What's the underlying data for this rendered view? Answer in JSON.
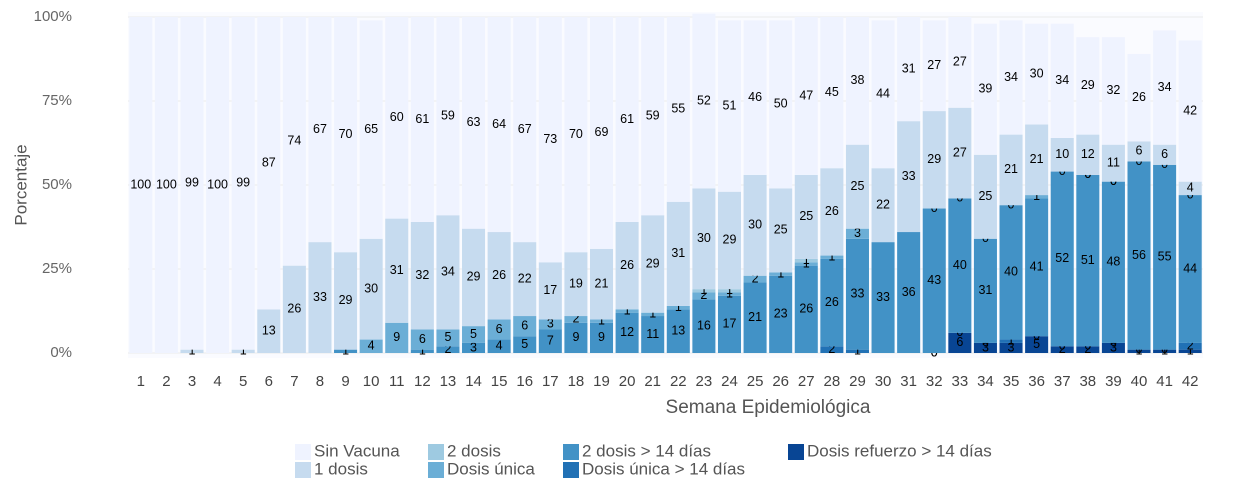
{
  "chart_data": {
    "type": "stacked-bar",
    "x_label": "Semana Epidemiológica",
    "y_label": "Porcentaje",
    "categories": [
      "1",
      "2",
      "3",
      "4",
      "5",
      "6",
      "7",
      "8",
      "9",
      "10",
      "11",
      "12",
      "13",
      "14",
      "15",
      "16",
      "17",
      "18",
      "19",
      "20",
      "21",
      "22",
      "23",
      "24",
      "25",
      "26",
      "27",
      "28",
      "29",
      "30",
      "31",
      "32",
      "33",
      "34",
      "35",
      "36",
      "37",
      "38",
      "39",
      "40",
      "41",
      "42"
    ],
    "ylim": [
      0,
      100
    ],
    "yticks": [
      {
        "value": 0,
        "label": "0%"
      },
      {
        "value": 25,
        "label": "25%"
      },
      {
        "value": 50,
        "label": "50%"
      },
      {
        "value": 75,
        "label": "75%"
      },
      {
        "value": 100,
        "label": "100%"
      }
    ],
    "grid": true,
    "legend": "bottom",
    "series": [
      {
        "name": "Sin Vacuna",
        "color": "#eff3ff",
        "values": [
          100,
          100,
          99,
          100,
          99,
          87,
          74,
          67,
          70,
          65,
          60,
          61,
          59,
          63,
          64,
          67,
          73,
          70,
          69,
          61,
          59,
          55,
          52,
          51,
          46,
          50,
          47,
          45,
          38,
          44,
          31,
          27,
          27,
          39,
          34,
          30,
          34,
          29,
          32,
          26,
          34,
          42
        ]
      },
      {
        "name": "1 dosis",
        "color": "#c6dbef",
        "values": [
          null,
          null,
          1,
          null,
          1,
          13,
          26,
          33,
          29,
          30,
          31,
          32,
          34,
          29,
          26,
          22,
          17,
          19,
          21,
          26,
          29,
          31,
          30,
          29,
          30,
          25,
          25,
          26,
          25,
          22,
          33,
          29,
          27,
          25,
          21,
          21,
          10,
          12,
          11,
          6,
          6,
          4
        ]
      },
      {
        "name": "2 dosis",
        "color": "#9ecae1",
        "values": [
          null,
          null,
          null,
          null,
          null,
          null,
          null,
          null,
          null,
          null,
          null,
          null,
          null,
          null,
          null,
          null,
          null,
          null,
          null,
          null,
          null,
          null,
          1,
          1,
          null,
          null,
          1,
          null,
          null,
          null,
          null,
          0,
          null,
          null,
          null,
          null,
          null,
          0,
          0,
          null,
          null,
          null
        ]
      },
      {
        "name": "Dosis única",
        "color": "#6baed6",
        "values": [
          null,
          null,
          null,
          null,
          null,
          null,
          null,
          null,
          null,
          4,
          9,
          6,
          5,
          5,
          6,
          6,
          3,
          2,
          1,
          1,
          1,
          1,
          2,
          1,
          2,
          1,
          1,
          1,
          3,
          null,
          null,
          null,
          0,
          0,
          0,
          1,
          0,
          0,
          0,
          0,
          0,
          0
        ]
      },
      {
        "name": "2 dosis > 14 días",
        "color": "#4292c6",
        "values": [
          null,
          null,
          null,
          null,
          null,
          null,
          null,
          null,
          1,
          null,
          null,
          1,
          2,
          3,
          4,
          5,
          7,
          9,
          9,
          12,
          11,
          13,
          16,
          17,
          21,
          23,
          26,
          26,
          33,
          33,
          36,
          43,
          40,
          31,
          40,
          41,
          52,
          51,
          48,
          56,
          55,
          44
        ]
      },
      {
        "name": "Dosis única > 14 días",
        "color": "#2171b5",
        "values": [
          null,
          null,
          null,
          null,
          null,
          null,
          null,
          null,
          null,
          null,
          null,
          null,
          null,
          null,
          null,
          null,
          null,
          null,
          null,
          null,
          null,
          null,
          null,
          null,
          null,
          null,
          null,
          2,
          1,
          null,
          null,
          0,
          0,
          0,
          1,
          0,
          0,
          0,
          0,
          0,
          0,
          2
        ]
      },
      {
        "name": "Dosis refuerzo > 14 días",
        "color": "#084594",
        "values": [
          null,
          null,
          null,
          null,
          null,
          null,
          null,
          null,
          null,
          null,
          null,
          null,
          null,
          null,
          null,
          null,
          null,
          null,
          null,
          null,
          null,
          null,
          null,
          null,
          null,
          null,
          null,
          null,
          null,
          null,
          null,
          0,
          6,
          3,
          3,
          5,
          2,
          2,
          3,
          1,
          1,
          1
        ]
      }
    ]
  }
}
